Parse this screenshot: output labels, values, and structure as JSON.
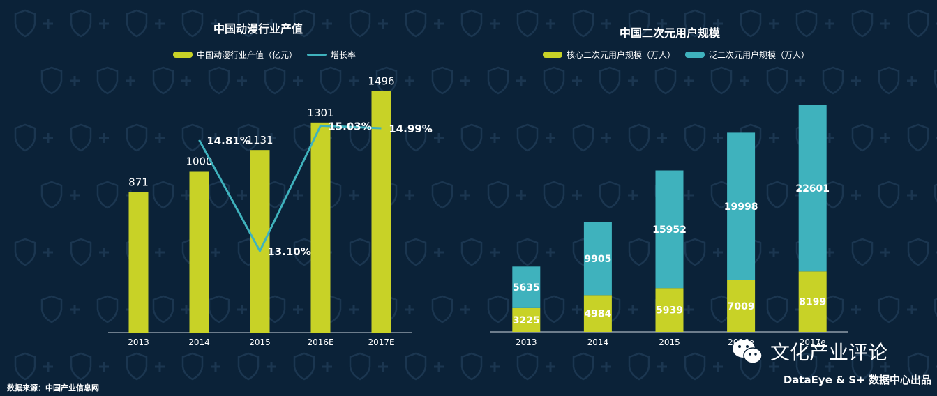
{
  "colors": {
    "background": "#0b2238",
    "bar_primary": "#c8d227",
    "line": "#3fb2bd",
    "bar_secondary": "#3fb2bd",
    "text": "#ffffff",
    "axis": "#cfd8df"
  },
  "chart_data": [
    {
      "type": "bar",
      "title": "中国动漫行业产值",
      "categories": [
        "2013",
        "2014",
        "2015",
        "2016E",
        "2017E"
      ],
      "series": [
        {
          "name": "中国动漫行业产值（亿元）",
          "type": "bar",
          "values": [
            871,
            1000,
            1131,
            1301,
            1496
          ],
          "labels": [
            "871",
            "1000",
            "1131",
            "1301",
            "1496"
          ]
        },
        {
          "name": "增长率",
          "type": "line",
          "values": [
            null,
            14.81,
            13.1,
            15.03,
            14.99
          ],
          "labels": [
            "",
            "14.81%",
            "13.10%",
            "15.03%",
            "14.99%"
          ]
        }
      ],
      "ylim": [
        0,
        1600
      ],
      "grid": false,
      "legend": "top-center"
    },
    {
      "type": "bar",
      "stacked": true,
      "title": "中国二次元用户规模",
      "categories": [
        "2013",
        "2014",
        "2015",
        "2016e",
        "2017e"
      ],
      "series": [
        {
          "name": "核心二次元用户规模（万人）",
          "values": [
            3225,
            4984,
            5939,
            7009,
            8199
          ],
          "labels": [
            "3225",
            "4984",
            "5939",
            "7009",
            "8199"
          ]
        },
        {
          "name": "泛二次元用户规模（万人）",
          "values": [
            5635,
            9905,
            15952,
            19998,
            22601
          ],
          "labels": [
            "5635",
            "9905",
            "15952",
            "19998",
            "22601"
          ]
        }
      ],
      "ylim": [
        0,
        32000
      ],
      "grid": false,
      "legend": "top-center"
    }
  ],
  "footer": {
    "source": "数据来源：中国产业信息网",
    "brand": "文化产业评论",
    "credit": "DataEye & S+ 数据中心出品"
  }
}
